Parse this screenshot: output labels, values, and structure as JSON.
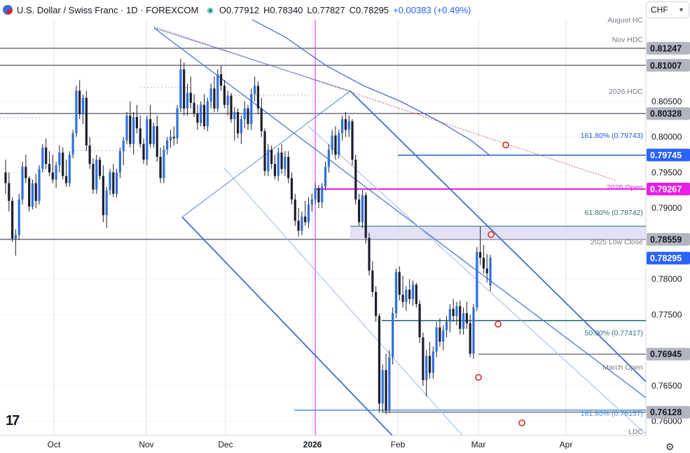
{
  "header": {
    "symbol": "U.S. Dollar / Swiss Franc · 1D · FOREXCOM",
    "open": "O0.77912",
    "high": "H0.78340",
    "low": "L0.77827",
    "close": "C0.78295",
    "change": "+0.00383 (+0.49%)"
  },
  "currency_selector": {
    "label": "CHF"
  },
  "chart_data": {
    "type": "candlestick",
    "title": "",
    "ylim": [
      0.758,
      0.8165
    ],
    "x_ticks": [
      "Oct",
      "Nov",
      "Dec",
      "2026",
      "Feb",
      "Mar",
      "Apr"
    ],
    "y_ticks": [
      "0.80500",
      "0.80000",
      "0.79500",
      "0.79000",
      "0.78000",
      "0.77500",
      "0.76500",
      "0.76000"
    ],
    "price_labels": [
      {
        "value": "0.81247",
        "style": "gray"
      },
      {
        "value": "0.81007",
        "style": "gray"
      },
      {
        "value": "0.80328",
        "style": "gray"
      },
      {
        "value": "0.79745",
        "style": "blue"
      },
      {
        "value": "0.79267",
        "style": "magenta"
      },
      {
        "value": "0.78559",
        "style": "gray"
      },
      {
        "value": "0.78295",
        "style": "blue"
      },
      {
        "value": "0.76945",
        "style": "gray"
      },
      {
        "value": "0.76128",
        "style": "gray"
      }
    ],
    "levels": [
      {
        "name": "August HC",
        "value": 0.81247
      },
      {
        "name": "Nov HDC",
        "value": 0.81007
      },
      {
        "name": "2026 HDC",
        "value": 0.80328
      },
      {
        "name": "161.80% (0.79743)",
        "value": 0.79743
      },
      {
        "name": "2026 Open",
        "value": 0.79267
      },
      {
        "name": "61.80% (0.78742)",
        "value": 0.78742
      },
      {
        "name": "2025 Low Close",
        "value": 0.78559
      },
      {
        "name": "50.00% (0.77417)",
        "value": 0.77417
      },
      {
        "name": "March Open",
        "value": 0.76945
      },
      {
        "name": "161.80% (0.76157)",
        "value": 0.76157
      },
      {
        "name": "LDC",
        "value": 0.76128
      }
    ],
    "last_price": 0.78295,
    "candles_ohlc": [
      [
        0.795,
        0.7968,
        0.792,
        0.7935
      ],
      [
        0.7935,
        0.795,
        0.7895,
        0.791
      ],
      [
        0.791,
        0.7915,
        0.7852,
        0.7857
      ],
      [
        0.7857,
        0.787,
        0.7833,
        0.7862
      ],
      [
        0.7862,
        0.792,
        0.7855,
        0.7912
      ],
      [
        0.7912,
        0.7965,
        0.7905,
        0.7958
      ],
      [
        0.7958,
        0.7975,
        0.7935,
        0.7942
      ],
      [
        0.7942,
        0.7945,
        0.7895,
        0.7902
      ],
      [
        0.7902,
        0.794,
        0.7898,
        0.7935
      ],
      [
        0.7935,
        0.7948,
        0.79,
        0.791
      ],
      [
        0.791,
        0.796,
        0.7905,
        0.7955
      ],
      [
        0.7955,
        0.799,
        0.795,
        0.7985
      ],
      [
        0.7985,
        0.7998,
        0.7955,
        0.7962
      ],
      [
        0.7962,
        0.798,
        0.7945,
        0.795
      ],
      [
        0.795,
        0.7975,
        0.7935,
        0.794
      ],
      [
        0.794,
        0.7965,
        0.7928,
        0.796
      ],
      [
        0.796,
        0.7988,
        0.795,
        0.7978
      ],
      [
        0.7978,
        0.7985,
        0.794,
        0.7945
      ],
      [
        0.7945,
        0.7968,
        0.793,
        0.7935
      ],
      [
        0.7935,
        0.798,
        0.793,
        0.7975
      ],
      [
        0.7975,
        0.801,
        0.797,
        0.8005
      ],
      [
        0.8005,
        0.8072,
        0.8,
        0.8065
      ],
      [
        0.8065,
        0.808,
        0.8025,
        0.8032
      ],
      [
        0.8032,
        0.806,
        0.8018,
        0.8055
      ],
      [
        0.8055,
        0.8065,
        0.798,
        0.7988
      ],
      [
        0.7988,
        0.8,
        0.7955,
        0.7962
      ],
      [
        0.7962,
        0.797,
        0.792,
        0.7926
      ],
      [
        0.7926,
        0.7975,
        0.792,
        0.7968
      ],
      [
        0.7968,
        0.7972,
        0.794,
        0.7945
      ],
      [
        0.7945,
        0.796,
        0.788,
        0.789
      ],
      [
        0.789,
        0.793,
        0.7872,
        0.7925
      ],
      [
        0.7925,
        0.7955,
        0.7918,
        0.795
      ],
      [
        0.795,
        0.7962,
        0.7915,
        0.792
      ],
      [
        0.792,
        0.7955,
        0.7915,
        0.795
      ],
      [
        0.795,
        0.7985,
        0.7942,
        0.798
      ],
      [
        0.798,
        0.8,
        0.796,
        0.7995
      ],
      [
        0.7995,
        0.8035,
        0.799,
        0.803
      ],
      [
        0.803,
        0.805,
        0.7985,
        0.799
      ],
      [
        0.799,
        0.8035,
        0.7975,
        0.8028
      ],
      [
        0.8028,
        0.8045,
        0.8005,
        0.8012
      ],
      [
        0.8012,
        0.803,
        0.7985,
        0.799
      ],
      [
        0.799,
        0.7998,
        0.7962,
        0.7968
      ],
      [
        0.7968,
        0.803,
        0.796,
        0.8025
      ],
      [
        0.8025,
        0.8045,
        0.7985,
        0.799
      ],
      [
        0.799,
        0.802,
        0.7985,
        0.8015
      ],
      [
        0.8015,
        0.803,
        0.7965,
        0.7972
      ],
      [
        0.7972,
        0.7985,
        0.7935,
        0.7942
      ],
      [
        0.7942,
        0.7988,
        0.7935,
        0.7982
      ],
      [
        0.7982,
        0.8,
        0.7975,
        0.7995
      ],
      [
        0.7995,
        0.801,
        0.7985,
        0.8
      ],
      [
        0.8,
        0.8015,
        0.7988,
        0.7998
      ],
      [
        0.7998,
        0.8045,
        0.799,
        0.804
      ],
      [
        0.804,
        0.811,
        0.8035,
        0.8095
      ],
      [
        0.8095,
        0.8105,
        0.803,
        0.804
      ],
      [
        0.804,
        0.8075,
        0.803,
        0.8062
      ],
      [
        0.8062,
        0.8085,
        0.804,
        0.8048
      ],
      [
        0.8048,
        0.806,
        0.8028,
        0.8033
      ],
      [
        0.8033,
        0.8045,
        0.801,
        0.802
      ],
      [
        0.802,
        0.805,
        0.8015,
        0.8045
      ],
      [
        0.8045,
        0.806,
        0.801,
        0.8015
      ],
      [
        0.8015,
        0.8055,
        0.8008,
        0.805
      ],
      [
        0.805,
        0.8075,
        0.804,
        0.8068
      ],
      [
        0.8068,
        0.8085,
        0.8035,
        0.804
      ],
      [
        0.804,
        0.8095,
        0.8035,
        0.8088
      ],
      [
        0.8088,
        0.81,
        0.8065,
        0.8072
      ],
      [
        0.8072,
        0.808,
        0.804,
        0.8045
      ],
      [
        0.8045,
        0.8065,
        0.803,
        0.8058
      ],
      [
        0.8058,
        0.8062,
        0.802,
        0.8025
      ],
      [
        0.8025,
        0.8042,
        0.7995,
        0.8035
      ],
      [
        0.8035,
        0.804,
        0.7998,
        0.8005
      ],
      [
        0.8005,
        0.803,
        0.799,
        0.8025
      ],
      [
        0.8025,
        0.805,
        0.8012,
        0.804
      ],
      [
        0.804,
        0.8045,
        0.801,
        0.8018
      ],
      [
        0.8018,
        0.8068,
        0.801,
        0.806
      ],
      [
        0.806,
        0.8085,
        0.805,
        0.8072
      ],
      [
        0.8072,
        0.8078,
        0.8032,
        0.804
      ],
      [
        0.804,
        0.8055,
        0.8,
        0.8008
      ],
      [
        0.8008,
        0.8012,
        0.7945,
        0.7952
      ],
      [
        0.7952,
        0.799,
        0.7945,
        0.7982
      ],
      [
        0.7982,
        0.7988,
        0.7955,
        0.7962
      ],
      [
        0.7962,
        0.7975,
        0.794,
        0.7945
      ],
      [
        0.7945,
        0.7985,
        0.7938,
        0.7978
      ],
      [
        0.7978,
        0.799,
        0.7948,
        0.7955
      ],
      [
        0.7955,
        0.798,
        0.7945,
        0.7972
      ],
      [
        0.7972,
        0.798,
        0.7935,
        0.7942
      ],
      [
        0.7942,
        0.795,
        0.7905,
        0.7912
      ],
      [
        0.7912,
        0.792,
        0.7875,
        0.7882
      ],
      [
        0.7882,
        0.79,
        0.786,
        0.7868
      ],
      [
        0.7868,
        0.7895,
        0.7862,
        0.7888
      ],
      [
        0.7888,
        0.791,
        0.7875,
        0.788
      ],
      [
        0.788,
        0.7915,
        0.7872,
        0.7905
      ],
      [
        0.7905,
        0.792,
        0.7895,
        0.7912
      ],
      [
        0.7912,
        0.7935,
        0.7905,
        0.7928
      ],
      [
        0.7928,
        0.7932,
        0.79,
        0.7908
      ],
      [
        0.7908,
        0.7935,
        0.79,
        0.793
      ],
      [
        0.793,
        0.7965,
        0.7925,
        0.7958
      ],
      [
        0.7958,
        0.799,
        0.795,
        0.7982
      ],
      [
        0.7982,
        0.801,
        0.7975,
        0.8002
      ],
      [
        0.8002,
        0.8015,
        0.7968,
        0.7975
      ],
      [
        0.7975,
        0.801,
        0.797,
        0.8005
      ],
      [
        0.8005,
        0.803,
        0.7995,
        0.8025
      ],
      [
        0.8025,
        0.8035,
        0.8,
        0.801
      ],
      [
        0.801,
        0.803,
        0.8,
        0.8022
      ],
      [
        0.8022,
        0.8025,
        0.796,
        0.7968
      ],
      [
        0.7968,
        0.7975,
        0.7905,
        0.7912
      ],
      [
        0.7912,
        0.792,
        0.7875,
        0.788
      ],
      [
        0.788,
        0.7925,
        0.7872,
        0.7918
      ],
      [
        0.7918,
        0.7922,
        0.785,
        0.7858
      ],
      [
        0.7858,
        0.7865,
        0.7805,
        0.7812
      ],
      [
        0.7812,
        0.7825,
        0.7775,
        0.7782
      ],
      [
        0.7782,
        0.779,
        0.774,
        0.7748
      ],
      [
        0.7748,
        0.7752,
        0.7612,
        0.7625
      ],
      [
        0.7625,
        0.768,
        0.7613,
        0.7672
      ],
      [
        0.7672,
        0.7695,
        0.761,
        0.7615
      ],
      [
        0.7615,
        0.77,
        0.7612,
        0.769
      ],
      [
        0.769,
        0.776,
        0.768,
        0.7752
      ],
      [
        0.7752,
        0.7815,
        0.7745,
        0.781
      ],
      [
        0.781,
        0.7818,
        0.777,
        0.7778
      ],
      [
        0.7778,
        0.7805,
        0.776,
        0.7768
      ],
      [
        0.7768,
        0.779,
        0.7755,
        0.7785
      ],
      [
        0.7785,
        0.78,
        0.7765,
        0.7772
      ],
      [
        0.7772,
        0.7798,
        0.7762,
        0.7792
      ],
      [
        0.7792,
        0.7795,
        0.776,
        0.7765
      ],
      [
        0.7765,
        0.777,
        0.771,
        0.7718
      ],
      [
        0.7718,
        0.7725,
        0.765,
        0.7658
      ],
      [
        0.7658,
        0.77,
        0.7635,
        0.7692
      ],
      [
        0.7692,
        0.7712,
        0.766,
        0.7668
      ],
      [
        0.7668,
        0.7705,
        0.766,
        0.7698
      ],
      [
        0.7698,
        0.774,
        0.769,
        0.7732
      ],
      [
        0.7732,
        0.7745,
        0.7705,
        0.7712
      ],
      [
        0.7712,
        0.7735,
        0.77,
        0.7728
      ],
      [
        0.7728,
        0.7748,
        0.7718,
        0.774
      ],
      [
        0.774,
        0.7765,
        0.7725,
        0.7758
      ],
      [
        0.7758,
        0.7772,
        0.774,
        0.7748
      ],
      [
        0.7748,
        0.7768,
        0.7735,
        0.7762
      ],
      [
        0.7762,
        0.777,
        0.7722,
        0.773
      ],
      [
        0.773,
        0.776,
        0.7722,
        0.7752
      ],
      [
        0.7752,
        0.7768,
        0.773,
        0.7738
      ],
      [
        0.7738,
        0.775,
        0.769,
        0.7695
      ],
      [
        0.7695,
        0.7765,
        0.7688,
        0.776
      ],
      [
        0.776,
        0.7845,
        0.7755,
        0.7838
      ],
      [
        0.7838,
        0.7874,
        0.782,
        0.783
      ],
      [
        0.783,
        0.7848,
        0.7808,
        0.7815
      ],
      [
        0.7815,
        0.7835,
        0.7795,
        0.7808
      ],
      [
        0.7791,
        0.7834,
        0.7783,
        0.783
      ]
    ],
    "ma_points": [
      [
        0.8165,
        0
      ],
      [
        0.814,
        18
      ],
      [
        0.81,
        40
      ],
      [
        0.8072,
        60
      ],
      [
        0.805,
        80
      ],
      [
        0.802,
        102
      ],
      [
        0.7995,
        118
      ],
      [
        0.7974,
        128
      ]
    ],
    "ma_series_name": ""
  }
}
